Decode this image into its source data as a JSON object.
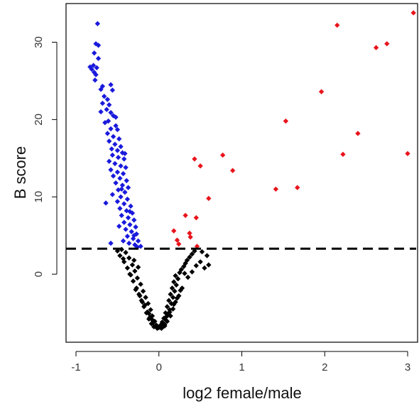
{
  "chart_data": {
    "type": "scatter",
    "title": "",
    "xlabel": "log2 female/male",
    "ylabel": "B score",
    "xlim": [
      -1.12,
      3.12
    ],
    "ylim": [
      -8.8,
      35.0
    ],
    "x_ticks": [
      -1,
      0,
      1,
      2,
      3
    ],
    "x_tick_labels": [
      "-1",
      "0",
      "1",
      "2",
      "3"
    ],
    "y_ticks": [
      0,
      10,
      20,
      30
    ],
    "y_tick_labels": [
      "0",
      "10",
      "20",
      "30"
    ],
    "grid": false,
    "legend": "none",
    "threshold": {
      "y": 3.3,
      "style": "dashed",
      "color": "#000000"
    },
    "colors": {
      "up": "#e8141b",
      "down": "#1a1adc",
      "ns": "#000000"
    },
    "series": [
      {
        "key": "down",
        "points": [
          [
            -0.74,
            32.4
          ],
          [
            -0.76,
            29.8
          ],
          [
            -0.73,
            29.6
          ],
          [
            -0.78,
            28.6
          ],
          [
            -0.73,
            27.9
          ],
          [
            -0.79,
            27.0
          ],
          [
            -0.83,
            26.8
          ],
          [
            -0.75,
            26.7
          ],
          [
            -0.81,
            26.5
          ],
          [
            -0.78,
            26.1
          ],
          [
            -0.76,
            25.8
          ],
          [
            -0.77,
            25.1
          ],
          [
            -0.68,
            24.3
          ],
          [
            -0.7,
            23.9
          ],
          [
            -0.58,
            24.5
          ],
          [
            -0.66,
            23.0
          ],
          [
            -0.56,
            23.8
          ],
          [
            -0.62,
            22.6
          ],
          [
            -0.68,
            22.1
          ],
          [
            -0.6,
            21.9
          ],
          [
            -0.63,
            21.3
          ],
          [
            -0.7,
            21.0
          ],
          [
            -0.58,
            20.9
          ],
          [
            -0.55,
            20.5
          ],
          [
            -0.61,
            19.8
          ],
          [
            -0.65,
            19.6
          ],
          [
            -0.52,
            19.2
          ],
          [
            -0.58,
            18.8
          ],
          [
            -0.5,
            18.7
          ],
          [
            -0.62,
            18.2
          ],
          [
            -0.55,
            17.8
          ],
          [
            -0.48,
            17.5
          ],
          [
            -0.6,
            17.2
          ],
          [
            -0.53,
            16.8
          ],
          [
            -0.46,
            16.5
          ],
          [
            -0.57,
            16.2
          ],
          [
            -0.5,
            16.0
          ],
          [
            -0.44,
            15.7
          ],
          [
            -0.56,
            15.4
          ],
          [
            -0.49,
            15.1
          ],
          [
            -0.42,
            14.9
          ],
          [
            -0.6,
            14.6
          ],
          [
            -0.53,
            14.3
          ],
          [
            -0.46,
            14.0
          ],
          [
            -0.4,
            13.8
          ],
          [
            -0.58,
            13.5
          ],
          [
            -0.5,
            13.2
          ],
          [
            -0.43,
            13.0
          ],
          [
            -0.55,
            12.7
          ],
          [
            -0.47,
            12.4
          ],
          [
            -0.39,
            12.1
          ],
          [
            -0.52,
            11.8
          ],
          [
            -0.44,
            11.5
          ],
          [
            -0.37,
            11.2
          ],
          [
            -0.49,
            10.9
          ],
          [
            -0.41,
            10.6
          ],
          [
            -0.56,
            10.3
          ],
          [
            -0.46,
            10.0
          ],
          [
            -0.38,
            9.7
          ],
          [
            -0.5,
            9.4
          ],
          [
            -0.42,
            9.1
          ],
          [
            -0.34,
            8.8
          ],
          [
            -0.47,
            8.5
          ],
          [
            -0.39,
            8.2
          ],
          [
            -0.32,
            7.9
          ],
          [
            -0.45,
            7.6
          ],
          [
            -0.37,
            7.3
          ],
          [
            -0.3,
            7.0
          ],
          [
            -0.42,
            6.7
          ],
          [
            -0.35,
            6.4
          ],
          [
            -0.28,
            6.1
          ],
          [
            -0.4,
            5.8
          ],
          [
            -0.33,
            5.5
          ],
          [
            -0.27,
            5.2
          ],
          [
            -0.38,
            4.9
          ],
          [
            -0.31,
            4.6
          ],
          [
            -0.25,
            4.3
          ],
          [
            -0.36,
            4.0
          ],
          [
            -0.29,
            3.8
          ],
          [
            -0.22,
            3.6
          ],
          [
            -0.58,
            4.0
          ],
          [
            -0.64,
            9.2
          ],
          [
            -0.52,
            20.3
          ],
          [
            -0.45,
            11.0
          ],
          [
            -0.41,
            15.6
          ],
          [
            -0.35,
            8.1
          ],
          [
            -0.3,
            5.0
          ],
          [
            -0.26,
            3.5
          ],
          [
            -0.48,
            6.2
          ],
          [
            -0.43,
            4.3
          ]
        ]
      },
      {
        "key": "up",
        "points": [
          [
            3.07,
            33.8
          ],
          [
            2.15,
            32.2
          ],
          [
            2.75,
            29.8
          ],
          [
            2.62,
            29.3
          ],
          [
            1.96,
            23.6
          ],
          [
            1.53,
            19.8
          ],
          [
            2.4,
            18.2
          ],
          [
            3.0,
            15.6
          ],
          [
            2.22,
            15.5
          ],
          [
            0.77,
            15.4
          ],
          [
            0.43,
            14.9
          ],
          [
            0.5,
            14.0
          ],
          [
            0.89,
            13.4
          ],
          [
            1.67,
            11.2
          ],
          [
            1.41,
            11.0
          ],
          [
            0.6,
            9.8
          ],
          [
            0.32,
            7.6
          ],
          [
            0.45,
            7.3
          ],
          [
            0.18,
            5.6
          ],
          [
            0.37,
            5.3
          ],
          [
            0.38,
            4.8
          ],
          [
            0.22,
            4.4
          ],
          [
            0.24,
            3.9
          ],
          [
            0.46,
            3.6
          ]
        ]
      },
      {
        "key": "ns",
        "points": [
          [
            -0.45,
            3.2
          ],
          [
            -0.4,
            2.8
          ],
          [
            -0.47,
            2.4
          ],
          [
            -0.36,
            2.1
          ],
          [
            -0.42,
            1.6
          ],
          [
            -0.32,
            1.2
          ],
          [
            -0.38,
            0.8
          ],
          [
            -0.29,
            0.4
          ],
          [
            -0.34,
            -0.1
          ],
          [
            -0.26,
            -0.5
          ],
          [
            -0.31,
            -0.9
          ],
          [
            -0.22,
            -1.3
          ],
          [
            -0.27,
            -1.8
          ],
          [
            -0.19,
            -2.2
          ],
          [
            -0.24,
            -2.6
          ],
          [
            -0.16,
            -3.0
          ],
          [
            -0.21,
            -3.4
          ],
          [
            -0.13,
            -3.8
          ],
          [
            -0.18,
            -4.2
          ],
          [
            -0.1,
            -4.6
          ],
          [
            -0.15,
            -5.0
          ],
          [
            -0.08,
            -5.4
          ],
          [
            -0.12,
            -5.8
          ],
          [
            -0.05,
            -6.1
          ],
          [
            -0.09,
            -6.4
          ],
          [
            -0.03,
            -6.6
          ],
          [
            -0.06,
            -6.8
          ],
          [
            0.0,
            -6.9
          ],
          [
            -0.02,
            -7.0
          ],
          [
            0.03,
            -7.0
          ],
          [
            0.05,
            -6.8
          ],
          [
            0.02,
            -6.6
          ],
          [
            0.07,
            -6.5
          ],
          [
            0.04,
            -6.2
          ],
          [
            0.09,
            -6.0
          ],
          [
            0.06,
            -5.7
          ],
          [
            0.11,
            -5.3
          ],
          [
            0.08,
            -5.0
          ],
          [
            0.13,
            -4.6
          ],
          [
            0.1,
            -4.2
          ],
          [
            0.15,
            -3.8
          ],
          [
            0.12,
            -3.4
          ],
          [
            0.17,
            -3.0
          ],
          [
            0.14,
            -2.6
          ],
          [
            0.19,
            -2.2
          ],
          [
            0.16,
            -1.8
          ],
          [
            0.21,
            -1.4
          ],
          [
            0.18,
            -1.0
          ],
          [
            0.23,
            -0.6
          ],
          [
            0.2,
            -0.2
          ],
          [
            0.25,
            0.2
          ],
          [
            0.27,
            0.6
          ],
          [
            0.3,
            1.0
          ],
          [
            0.32,
            1.4
          ],
          [
            0.34,
            1.8
          ],
          [
            0.37,
            2.2
          ],
          [
            0.4,
            2.6
          ],
          [
            0.43,
            3.0
          ],
          [
            0.5,
            1.6
          ],
          [
            0.55,
            0.8
          ],
          [
            0.6,
            1.2
          ],
          [
            0.58,
            2.4
          ],
          [
            0.52,
            2.9
          ],
          [
            -0.28,
            -2.0
          ],
          [
            -0.2,
            -3.6
          ],
          [
            -0.14,
            -4.9
          ],
          [
            -0.11,
            -5.6
          ],
          [
            -0.07,
            -6.3
          ],
          [
            -0.04,
            -6.7
          ],
          [
            0.01,
            -6.8
          ],
          [
            0.04,
            -6.9
          ],
          [
            0.07,
            -6.7
          ],
          [
            0.1,
            -6.1
          ],
          [
            0.14,
            -5.4
          ],
          [
            0.17,
            -4.5
          ],
          [
            0.2,
            -3.6
          ],
          [
            0.24,
            -2.8
          ],
          [
            0.28,
            -1.8
          ],
          [
            -0.35,
            0.0
          ],
          [
            -0.23,
            -2.8
          ],
          [
            -0.17,
            -4.0
          ],
          [
            -0.12,
            -5.1
          ],
          [
            -0.08,
            -5.9
          ],
          [
            0.09,
            -5.5
          ],
          [
            0.13,
            -4.9
          ],
          [
            0.18,
            -3.9
          ],
          [
            0.22,
            -3.1
          ],
          [
            0.26,
            -2.1
          ],
          [
            -0.3,
            1.8
          ],
          [
            -0.25,
            0.9
          ],
          [
            -0.43,
            2.0
          ],
          [
            0.35,
            -0.4
          ],
          [
            0.31,
            0.1
          ],
          [
            0.45,
            1.1
          ],
          [
            0.4,
            0.3
          ],
          [
            -0.5,
            3.0
          ]
        ]
      }
    ]
  }
}
